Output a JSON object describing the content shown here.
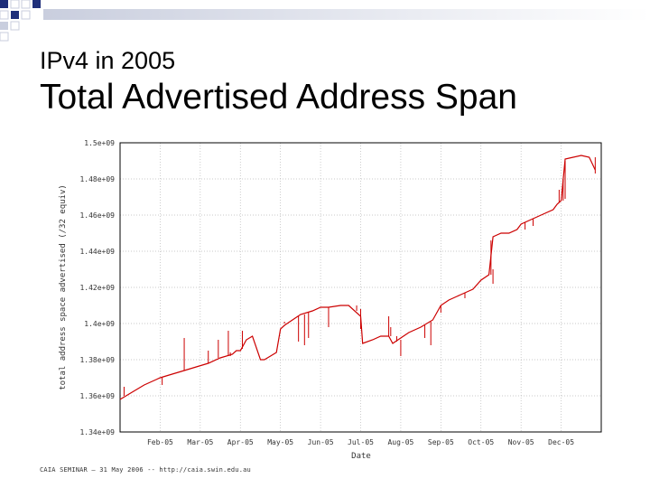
{
  "slide": {
    "subtitle": "IPv4 in 2005",
    "title": "Total Advertised Address Span",
    "footer": "CAIA SEMINAR – 31 May 2006 -- http://caia.swin.edu.au"
  },
  "colors": {
    "accent_dark": "#1f2f7a",
    "accent_light": "#c9cede",
    "series": "#cc0000",
    "grid": "#b8b8b8"
  },
  "chart_data": {
    "type": "line",
    "title": "",
    "xlabel": "Date",
    "ylabel": "total address space advertised (/32 equiv)",
    "x_tick_labels": [
      "Feb-05",
      "Mar-05",
      "Apr-05",
      "May-05",
      "Jun-05",
      "Jul-05",
      "Aug-05",
      "Sep-05",
      "Oct-05",
      "Nov-05",
      "Dec-05"
    ],
    "y_tick_labels": [
      "1.34e+09",
      "1.36e+09",
      "1.38e+09",
      "1.4e+09",
      "1.42e+09",
      "1.44e+09",
      "1.46e+09",
      "1.48e+09",
      "1.5e+09"
    ],
    "xlim": [
      0,
      12
    ],
    "ylim": [
      1340000000.0,
      1500000000.0
    ],
    "grid": true,
    "series": [
      {
        "name": "total advertised address span",
        "x": [
          0.0,
          0.3,
          0.6,
          0.9,
          1.0,
          1.3,
          1.6,
          1.9,
          2.2,
          2.5,
          2.8,
          2.9,
          3.0,
          3.15,
          3.3,
          3.5,
          3.6,
          3.75,
          3.9,
          4.0,
          4.1,
          4.3,
          4.5,
          4.8,
          5.0,
          5.2,
          5.5,
          5.7,
          6.0,
          6.05,
          6.3,
          6.5,
          6.7,
          6.8,
          7.0,
          7.2,
          7.5,
          7.8,
          8.0,
          8.2,
          8.4,
          8.6,
          8.7,
          8.8,
          9.0,
          9.2,
          9.3,
          9.5,
          9.7,
          9.9,
          10.0,
          10.2,
          10.4,
          10.6,
          10.8,
          10.9,
          11.0,
          11.1,
          11.3,
          11.5,
          11.7,
          11.85
        ],
        "y": [
          1358000000.0,
          1362000000.0,
          1366000000.0,
          1369000000.0,
          1370000000.0,
          1372000000.0,
          1374000000.0,
          1376000000.0,
          1378000000.0,
          1381000000.0,
          1383000000.0,
          1385000000.0,
          1385000000.0,
          1391000000.0,
          1393000000.0,
          1380000000.0,
          1380000000.0,
          1382000000.0,
          1384000000.0,
          1397000000.0,
          1399000000.0,
          1402000000.0,
          1405000000.0,
          1407000000.0,
          1409000000.0,
          1409000000.0,
          1410000000.0,
          1410000000.0,
          1404000000.0,
          1389000000.0,
          1391000000.0,
          1393000000.0,
          1393000000.0,
          1389000000.0,
          1392000000.0,
          1395000000.0,
          1398000000.0,
          1402000000.0,
          1410000000.0,
          1413000000.0,
          1415000000.0,
          1417000000.0,
          1418000000.0,
          1419000000.0,
          1424000000.0,
          1427000000.0,
          1448000000.0,
          1450000000.0,
          1450000000.0,
          1452000000.0,
          1455000000.0,
          1457000000.0,
          1459000000.0,
          1461000000.0,
          1463000000.0,
          1466000000.0,
          1468000000.0,
          1491000000.0,
          1492000000.0,
          1493000000.0,
          1492000000.0,
          1485000000.0
        ]
      }
    ],
    "spikes": [
      {
        "x": 0.1,
        "from": 1360000000.0,
        "to": 1365000000.0
      },
      {
        "x": 1.05,
        "from": 1370000000.0,
        "to": 1366000000.0
      },
      {
        "x": 1.6,
        "from": 1374000000.0,
        "to": 1392000000.0
      },
      {
        "x": 2.2,
        "from": 1378000000.0,
        "to": 1385000000.0
      },
      {
        "x": 2.45,
        "from": 1381000000.0,
        "to": 1391000000.0
      },
      {
        "x": 2.7,
        "from": 1382000000.0,
        "to": 1396000000.0
      },
      {
        "x": 2.75,
        "from": 1382000000.0,
        "to": 1384000000.0
      },
      {
        "x": 3.05,
        "from": 1386000000.0,
        "to": 1396000000.0
      },
      {
        "x": 4.1,
        "from": 1401000000.0,
        "to": 1400000000.0
      },
      {
        "x": 4.45,
        "from": 1404000000.0,
        "to": 1390000000.0
      },
      {
        "x": 4.6,
        "from": 1405000000.0,
        "to": 1388000000.0
      },
      {
        "x": 4.7,
        "from": 1406000000.0,
        "to": 1392000000.0
      },
      {
        "x": 5.2,
        "from": 1409000000.0,
        "to": 1398000000.0
      },
      {
        "x": 5.9,
        "from": 1410000000.0,
        "to": 1407000000.0
      },
      {
        "x": 6.0,
        "from": 1408000000.0,
        "to": 1397000000.0
      },
      {
        "x": 6.7,
        "from": 1393000000.0,
        "to": 1404000000.0
      },
      {
        "x": 6.75,
        "from": 1393000000.0,
        "to": 1398000000.0
      },
      {
        "x": 6.9,
        "from": 1390000000.0,
        "to": 1393000000.0
      },
      {
        "x": 7.0,
        "from": 1391000000.0,
        "to": 1382000000.0
      },
      {
        "x": 7.6,
        "from": 1399000000.0,
        "to": 1392000000.0
      },
      {
        "x": 7.75,
        "from": 1401000000.0,
        "to": 1388000000.0
      },
      {
        "x": 8.0,
        "from": 1410000000.0,
        "to": 1406000000.0
      },
      {
        "x": 8.6,
        "from": 1417000000.0,
        "to": 1414000000.0
      },
      {
        "x": 9.25,
        "from": 1427000000.0,
        "to": 1446000000.0
      },
      {
        "x": 9.3,
        "from": 1430000000.0,
        "to": 1422000000.0
      },
      {
        "x": 10.1,
        "from": 1456000000.0,
        "to": 1452000000.0
      },
      {
        "x": 10.3,
        "from": 1458000000.0,
        "to": 1454000000.0
      },
      {
        "x": 10.95,
        "from": 1467000000.0,
        "to": 1474000000.0
      },
      {
        "x": 11.05,
        "from": 1468000000.0,
        "to": 1480000000.0
      },
      {
        "x": 11.1,
        "from": 1469000000.0,
        "to": 1490000000.0
      },
      {
        "x": 11.85,
        "from": 1492000000.0,
        "to": 1483000000.0
      }
    ]
  }
}
